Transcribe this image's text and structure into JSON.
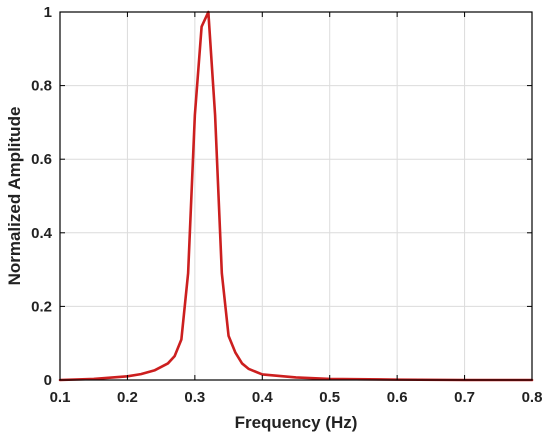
{
  "chart_data": {
    "type": "line",
    "title": "",
    "xlabel": "Frequency (Hz)",
    "ylabel": "Normalized Amplitude",
    "xlim": [
      0.1,
      0.8
    ],
    "ylim": [
      0,
      1
    ],
    "x_ticks": [
      0.1,
      0.2,
      0.3,
      0.4,
      0.5,
      0.6,
      0.7,
      0.8
    ],
    "x_tick_labels": [
      "0.1",
      "0.2",
      "0.3",
      "0.4",
      "0.5",
      "0.6",
      "0.7",
      "0.8"
    ],
    "y_ticks": [
      0,
      0.2,
      0.4,
      0.6,
      0.8,
      1
    ],
    "y_tick_labels": [
      "0",
      "0.2",
      "0.4",
      "0.6",
      "0.8",
      "1"
    ],
    "grid": true,
    "legend": "none",
    "series": [
      {
        "color": "#cc1f1f",
        "x": [
          0.1,
          0.15,
          0.2,
          0.22,
          0.24,
          0.26,
          0.27,
          0.28,
          0.29,
          0.3,
          0.31,
          0.32,
          0.33,
          0.34,
          0.35,
          0.36,
          0.37,
          0.38,
          0.4,
          0.45,
          0.5,
          0.6,
          0.7,
          0.8
        ],
        "y": [
          0.0,
          0.003,
          0.01,
          0.016,
          0.026,
          0.045,
          0.065,
          0.11,
          0.29,
          0.72,
          0.96,
          1.0,
          0.72,
          0.29,
          0.12,
          0.075,
          0.045,
          0.03,
          0.015,
          0.007,
          0.003,
          0.001,
          0.0,
          0.0
        ]
      }
    ],
    "axis_color": "#000000",
    "grid_color": "#dcdcdc"
  }
}
